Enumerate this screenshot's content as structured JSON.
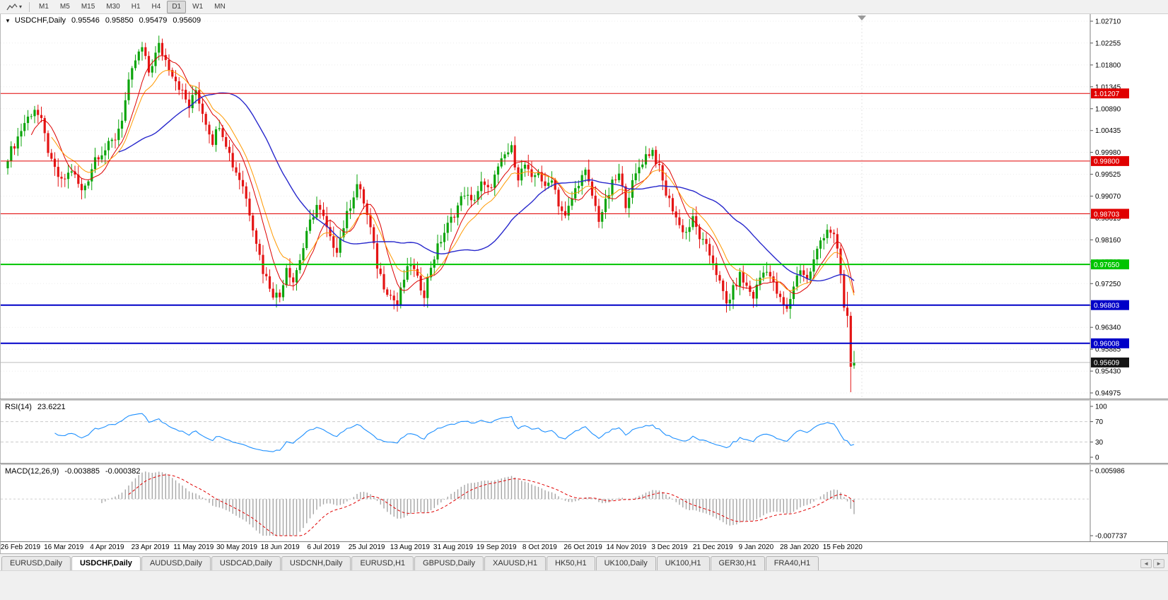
{
  "icons": {
    "title_arrow": "▼",
    "caret": "▾",
    "tab_scroll_left": "◄",
    "tab_scroll_right": "►"
  },
  "toolbar": {
    "chart_type_icon": "line-chart-icon",
    "timeframes": [
      "M1",
      "M5",
      "M15",
      "M30",
      "H1",
      "H4",
      "D1",
      "W1",
      "MN"
    ],
    "active_timeframe": "D1"
  },
  "main_chart": {
    "title_symbol": "USDCHF,Daily",
    "ohlc": {
      "open": "0.95546",
      "high": "0.95850",
      "low": "0.95479",
      "close": "0.95609"
    },
    "scale_ticks": [
      "1.02710",
      "1.02255",
      "1.01800",
      "1.01345",
      "1.00890",
      "1.00435",
      "0.99980",
      "0.99525",
      "0.99070",
      "0.98615",
      "0.98160",
      "0.97705",
      "0.97250",
      "0.96795",
      "0.96340",
      "0.95885",
      "0.95430",
      "0.94975"
    ],
    "hlines": [
      {
        "price": 1.01207,
        "label": "1.01207",
        "color": "#e00000",
        "width": 1
      },
      {
        "price": 0.998,
        "label": "0.99800",
        "color": "#e00000",
        "width": 1
      },
      {
        "price": 0.98703,
        "label": "0.98703",
        "color": "#e00000",
        "width": 1
      },
      {
        "price": 0.9765,
        "label": "0.97650",
        "color": "#00c400",
        "width": 2
      },
      {
        "price": 0.96803,
        "label": "0.96803",
        "color": "#0000c8",
        "width": 2
      },
      {
        "price": 0.96008,
        "label": "0.96008",
        "color": "#0000c8",
        "width": 2
      }
    ],
    "current_price": {
      "value": "0.95609",
      "box_color": "#151515"
    }
  },
  "rsi": {
    "label": "RSI(14)",
    "value": "23.6221",
    "levels": [
      "100",
      "70",
      "30",
      "0"
    ]
  },
  "macd": {
    "label": "MACD(12,26,9)",
    "value_main": "-0.003885",
    "value_signal": "-0.000382",
    "scale_top": "0.005986",
    "scale_bottom": "-0.007737"
  },
  "date_axis": [
    "26 Feb 2019",
    "16 Mar 2019",
    "4 Apr 2019",
    "23 Apr 2019",
    "11 May 2019",
    "30 May 2019",
    "18 Jun 2019",
    "6 Jul 2019",
    "25 Jul 2019",
    "13 Aug 2019",
    "31 Aug 2019",
    "19 Sep 2019",
    "8 Oct 2019",
    "26 Oct 2019",
    "14 Nov 2019",
    "3 Dec 2019",
    "21 Dec 2019",
    "9 Jan 2020",
    "28 Jan 2020",
    "15 Feb 2020"
  ],
  "tabs": {
    "items": [
      "EURUSD,Daily",
      "USDCHF,Daily",
      "AUDUSD,Daily",
      "USDCAD,Daily",
      "USDCNH,Daily",
      "EURUSD,H1",
      "GBPUSD,Daily",
      "XAUUSD,H1",
      "HK50,H1",
      "UK100,Daily",
      "UK100,H1",
      "GER30,H1",
      "FRA40,H1"
    ],
    "active_index": 1
  },
  "chart_data": {
    "type": "candlestick",
    "symbol": "USDCHF",
    "timeframe": "Daily",
    "num_bars": 253,
    "price_axis_range": [
      0.94975,
      1.0271
    ],
    "close_waypoints": [
      [
        0,
        0.999
      ],
      [
        2,
        1.0015
      ],
      [
        5,
        1.006
      ],
      [
        8,
        1.009
      ],
      [
        10,
        1.006
      ],
      [
        13,
        0.9975
      ],
      [
        16,
        0.9935
      ],
      [
        19,
        0.9962
      ],
      [
        22,
        0.9916
      ],
      [
        24,
        0.9945
      ],
      [
        26,
        0.9988
      ],
      [
        29,
        1.0004
      ],
      [
        32,
        1.0028
      ],
      [
        34,
        1.007
      ],
      [
        36,
        1.014
      ],
      [
        38,
        1.019
      ],
      [
        40,
        1.0215
      ],
      [
        42,
        1.0165
      ],
      [
        45,
        1.022
      ],
      [
        47,
        1.019
      ],
      [
        50,
        1.015
      ],
      [
        52,
        1.0122
      ],
      [
        54,
        1.0092
      ],
      [
        56,
        1.0128
      ],
      [
        58,
        1.0082
      ],
      [
        61,
        1.0022
      ],
      [
        63,
        1.0058
      ],
      [
        65,
        1.0018
      ],
      [
        67,
        0.9972
      ],
      [
        70,
        0.993
      ],
      [
        73,
        0.9845
      ],
      [
        76,
        0.9752
      ],
      [
        79,
        0.9705
      ],
      [
        81,
        0.9698
      ],
      [
        83,
        0.9762
      ],
      [
        85,
        0.973
      ],
      [
        88,
        0.98
      ],
      [
        90,
        0.9852
      ],
      [
        92,
        0.9888
      ],
      [
        94,
        0.986
      ],
      [
        96,
        0.9815
      ],
      [
        98,
        0.9798
      ],
      [
        100,
        0.9845
      ],
      [
        102,
        0.989
      ],
      [
        104,
        0.9932
      ],
      [
        106,
        0.9895
      ],
      [
        108,
        0.9838
      ],
      [
        110,
        0.9762
      ],
      [
        112,
        0.9722
      ],
      [
        114,
        0.97
      ],
      [
        116,
        0.9682
      ],
      [
        118,
        0.9735
      ],
      [
        120,
        0.9768
      ],
      [
        122,
        0.9732
      ],
      [
        124,
        0.9705
      ],
      [
        126,
        0.9762
      ],
      [
        128,
        0.98
      ],
      [
        130,
        0.9832
      ],
      [
        133,
        0.9872
      ],
      [
        136,
        0.9915
      ],
      [
        138,
        0.9892
      ],
      [
        141,
        0.9932
      ],
      [
        143,
        0.9918
      ],
      [
        146,
        0.9962
      ],
      [
        148,
        0.9992
      ],
      [
        150,
        1.0005
      ],
      [
        152,
        0.9948
      ],
      [
        154,
        0.9972
      ],
      [
        156,
        0.9938
      ],
      [
        158,
        0.9962
      ],
      [
        160,
        0.992
      ],
      [
        162,
        0.9948
      ],
      [
        164,
        0.9892
      ],
      [
        166,
        0.9862
      ],
      [
        168,
        0.9902
      ],
      [
        170,
        0.9938
      ],
      [
        172,
        0.9955
      ],
      [
        174,
        0.9908
      ],
      [
        176,
        0.986
      ],
      [
        178,
        0.9892
      ],
      [
        180,
        0.9932
      ],
      [
        182,
        0.995
      ],
      [
        184,
        0.9892
      ],
      [
        186,
        0.9932
      ],
      [
        188,
        0.9968
      ],
      [
        190,
        0.9992
      ],
      [
        192,
        1.0002
      ],
      [
        194,
        0.9962
      ],
      [
        196,
        0.9912
      ],
      [
        198,
        0.9882
      ],
      [
        200,
        0.9845
      ],
      [
        202,
        0.9832
      ],
      [
        204,
        0.9858
      ],
      [
        206,
        0.9822
      ],
      [
        208,
        0.9798
      ],
      [
        210,
        0.9772
      ],
      [
        212,
        0.9725
      ],
      [
        214,
        0.9682
      ],
      [
        216,
        0.9712
      ],
      [
        218,
        0.9742
      ],
      [
        220,
        0.9718
      ],
      [
        222,
        0.9698
      ],
      [
        224,
        0.9738
      ],
      [
        226,
        0.9758
      ],
      [
        228,
        0.9722
      ],
      [
        230,
        0.969
      ],
      [
        232,
        0.9668
      ],
      [
        234,
        0.9722
      ],
      [
        236,
        0.9758
      ],
      [
        238,
        0.9732
      ],
      [
        240,
        0.9772
      ],
      [
        242,
        0.9815
      ],
      [
        244,
        0.984
      ],
      [
        246,
        0.9828
      ],
      [
        247,
        0.9798
      ],
      [
        248,
        0.9745
      ],
      [
        249,
        0.9675
      ],
      [
        250,
        0.9658
      ],
      [
        251,
        0.9552
      ],
      [
        252,
        0.95609
      ]
    ],
    "last_bars": [
      {
        "o": 0.9675,
        "h": 0.9708,
        "l": 0.9634,
        "c": 0.9658
      },
      {
        "o": 0.9658,
        "h": 0.9666,
        "l": 0.9499,
        "c": 0.9552
      },
      {
        "o": 0.95546,
        "h": 0.9585,
        "l": 0.95479,
        "c": 0.95609
      }
    ],
    "moving_averages": [
      {
        "type": "sma",
        "period": 8,
        "color": "#dd0000",
        "width": 1
      },
      {
        "type": "ema",
        "period": 13,
        "color": "#ff9900",
        "width": 1
      },
      {
        "type": "sma",
        "period": 34,
        "color": "#2828cc",
        "width": 1.4
      }
    ],
    "horizontal_levels": [
      1.01207,
      0.998,
      0.98703,
      0.9765,
      0.96803,
      0.96008
    ],
    "candle_colors": {
      "up": "#0ca50c",
      "down": "#e41414"
    },
    "rsi": {
      "period": 14,
      "current": 23.6221,
      "line_color": "#1e90ff",
      "bands": [
        70,
        30
      ]
    },
    "macd": {
      "fast": 12,
      "slow": 26,
      "signal": 9,
      "current_main": -0.003885,
      "current_signal": -0.000382,
      "histogram_color": "#a6a6a6",
      "signal_color": "#e00000"
    }
  }
}
